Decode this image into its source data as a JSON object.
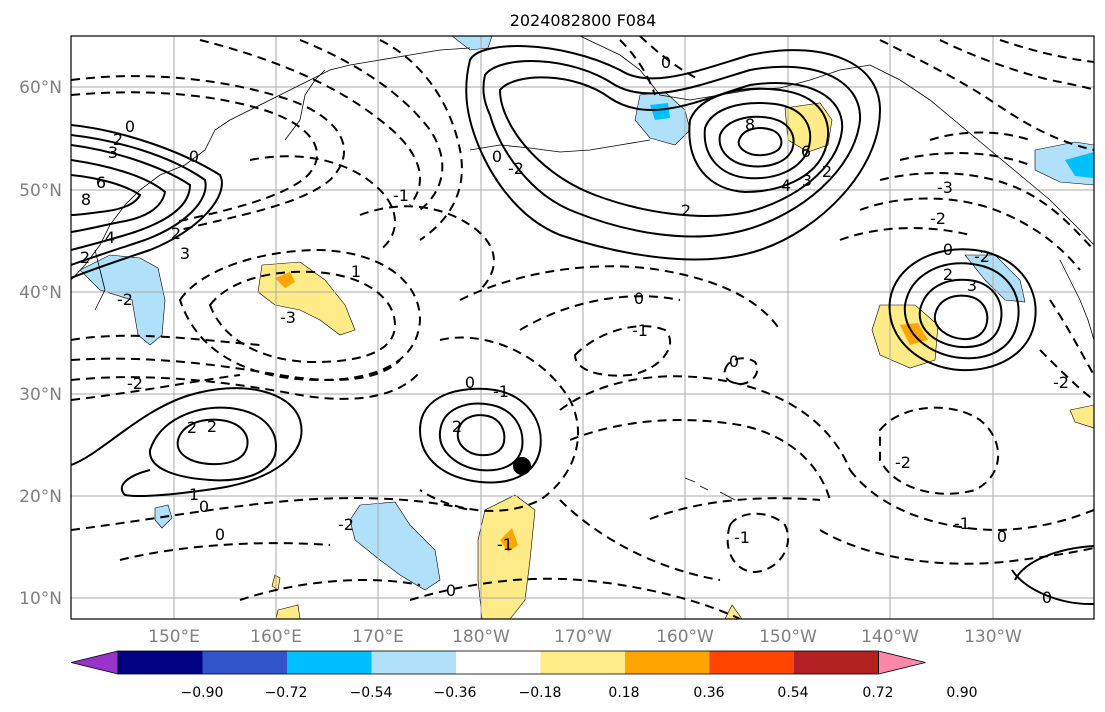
{
  "title": "2024082800 F084",
  "lat_labels": [
    "60°N",
    "50°N",
    "40°N",
    "30°N",
    "20°N",
    "10°N"
  ],
  "lon_labels": [
    "150°E",
    "160°E",
    "170°E",
    "180°W",
    "170°W",
    "160°W",
    "150°W",
    "140°W",
    "130°W"
  ],
  "colorbar": {
    "ticks": [
      "−0.90",
      "−0.72",
      "−0.54",
      "−0.36",
      "−0.18",
      "0.18",
      "0.36",
      "0.54",
      "0.72",
      "0.90"
    ],
    "colors": [
      "#9933cc",
      "#000080",
      "#3355cc",
      "#00bfff",
      "#b0e0fa",
      "#ffffff",
      "#ffeb88",
      "#ffa500",
      "#ff4500",
      "#b22222",
      "#ff88aa"
    ]
  },
  "contour_labels": [
    "0",
    "2",
    "3",
    "6",
    "8",
    "4",
    "2",
    "3",
    "2",
    "0",
    "-2",
    "-1",
    "-3",
    "0",
    "-2",
    "8",
    "6",
    "4",
    "3",
    "2",
    "2",
    "0",
    "1",
    "-3",
    "-2",
    "0",
    "-1",
    "0",
    "2",
    "3",
    "-2",
    "-2",
    "2",
    "2",
    "1",
    "0",
    "0",
    "-1",
    "0",
    "2",
    "-2",
    "-1",
    "0",
    "-1",
    "-2",
    "0",
    "-1",
    "0",
    "-2",
    "0"
  ],
  "marker": "storm-center-dot"
}
